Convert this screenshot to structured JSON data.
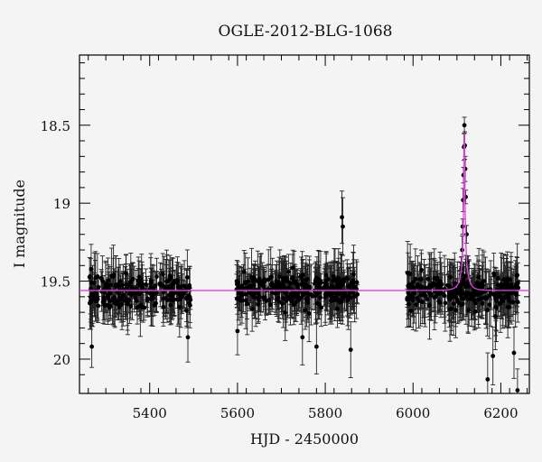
{
  "chart_data": {
    "type": "scatter",
    "title": "OGLE-2012-BLG-1068",
    "xlabel": "HJD - 2450000",
    "ylabel": "I magnitude",
    "xlim": [
      5240,
      6265
    ],
    "ylim": [
      20.22,
      18.05
    ],
    "y_inverted": true,
    "x_ticks": [
      5400,
      5600,
      5800,
      6000,
      6200
    ],
    "x_tick_labels": [
      "5400",
      "5600",
      "5800",
      "6000",
      "6200"
    ],
    "y_ticks": [
      18.5,
      19,
      19.5,
      20
    ],
    "y_tick_labels": [
      "18.5",
      "19",
      "19.5",
      "20"
    ],
    "legend": "none",
    "grid": false,
    "series": [
      {
        "kind": "photometry",
        "color": "#000000",
        "seasons": [
          {
            "x_range": [
              5262,
              5495
            ],
            "baseline": 19.57,
            "n": 230,
            "scatter": 0.1,
            "err_range": [
              0.05,
              0.2
            ]
          },
          {
            "x_range": [
              5598,
              5875
            ],
            "baseline": 19.56,
            "n": 330,
            "scatter": 0.1,
            "err_range": [
              0.05,
              0.2
            ]
          },
          {
            "x_range": [
              5985,
              6240
            ],
            "baseline": 19.57,
            "n": 280,
            "scatter": 0.1,
            "err_range": [
              0.05,
              0.22
            ]
          }
        ],
        "outliers": [
          {
            "x": 5268,
            "y": 19.92
          },
          {
            "x": 5487,
            "y": 19.86
          },
          {
            "x": 5600,
            "y": 19.82
          },
          {
            "x": 5615,
            "y": 19.44
          },
          {
            "x": 5748,
            "y": 19.86
          },
          {
            "x": 5780,
            "y": 19.92
          },
          {
            "x": 5838,
            "y": 19.09
          },
          {
            "x": 5840,
            "y": 19.15
          },
          {
            "x": 5858,
            "y": 19.94
          },
          {
            "x": 6170,
            "y": 20.13
          },
          {
            "x": 6182,
            "y": 19.98
          },
          {
            "x": 6230,
            "y": 19.96
          },
          {
            "x": 6238,
            "y": 20.2
          }
        ],
        "peak_points": [
          {
            "x": 6110,
            "y": 19.42
          },
          {
            "x": 6112,
            "y": 19.3
          },
          {
            "x": 6113,
            "y": 19.15
          },
          {
            "x": 6114,
            "y": 18.98
          },
          {
            "x": 6115,
            "y": 18.82
          },
          {
            "x": 6116,
            "y": 18.64
          },
          {
            "x": 6117,
            "y": 18.5
          },
          {
            "x": 6118,
            "y": 18.63
          },
          {
            "x": 6119,
            "y": 18.78
          },
          {
            "x": 6120,
            "y": 18.96
          },
          {
            "x": 6122,
            "y": 19.2
          },
          {
            "x": 6124,
            "y": 19.38
          }
        ]
      },
      {
        "kind": "model",
        "color": "#e040e0",
        "baseline": 19.56,
        "t0": 6117,
        "peak_mag": 18.55,
        "width_days": 3.2
      }
    ]
  }
}
